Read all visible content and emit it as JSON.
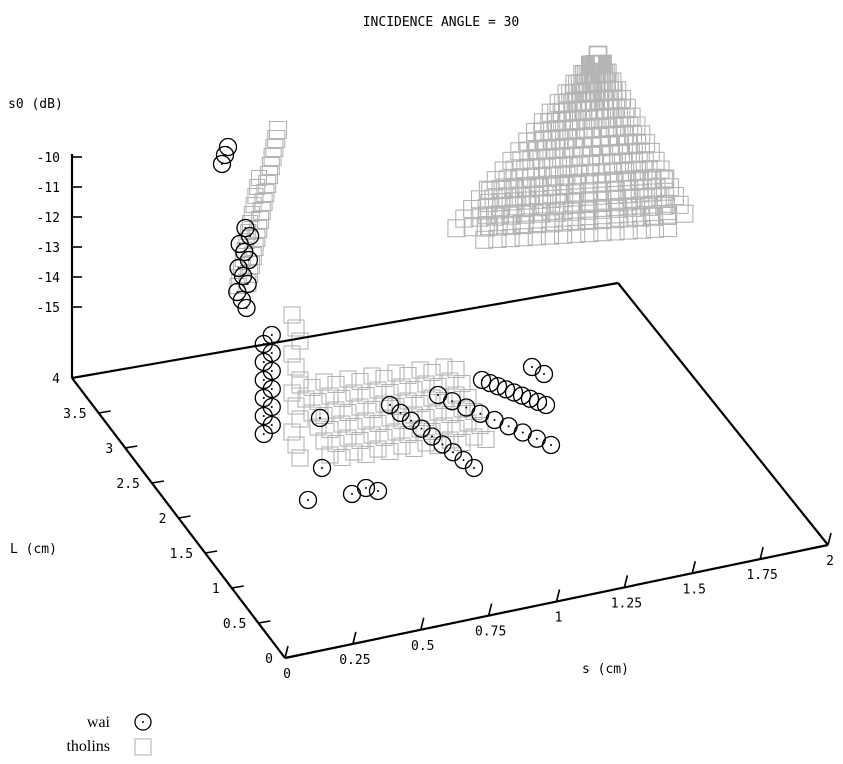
{
  "chart_data": {
    "type": "scatter",
    "title": "INCIDENCE ANGLE = 30",
    "zlabel": "s0 (dB)",
    "ylabel": "L (cm)",
    "xlabel": "s (cm)",
    "x_ticks": [
      "0",
      "0.25",
      "0.5",
      "0.75",
      "1",
      "1.25",
      "1.5",
      "1.75",
      "2"
    ],
    "y_ticks": [
      "0",
      "0.5",
      "1",
      "1.5",
      "2",
      "2.5",
      "3",
      "3.5",
      "4"
    ],
    "z_ticks": [
      "-10",
      "-11",
      "-12",
      "-13",
      "-14",
      "-15"
    ],
    "xlim": [
      0,
      2
    ],
    "ylim": [
      0,
      4
    ],
    "legend_placement": "bottom-left",
    "series": [
      {
        "name": "wai",
        "marker": "circle-with-dot",
        "color": "#000000"
      },
      {
        "name": "tholins",
        "marker": "square",
        "color": "#b4b4b4"
      }
    ]
  }
}
